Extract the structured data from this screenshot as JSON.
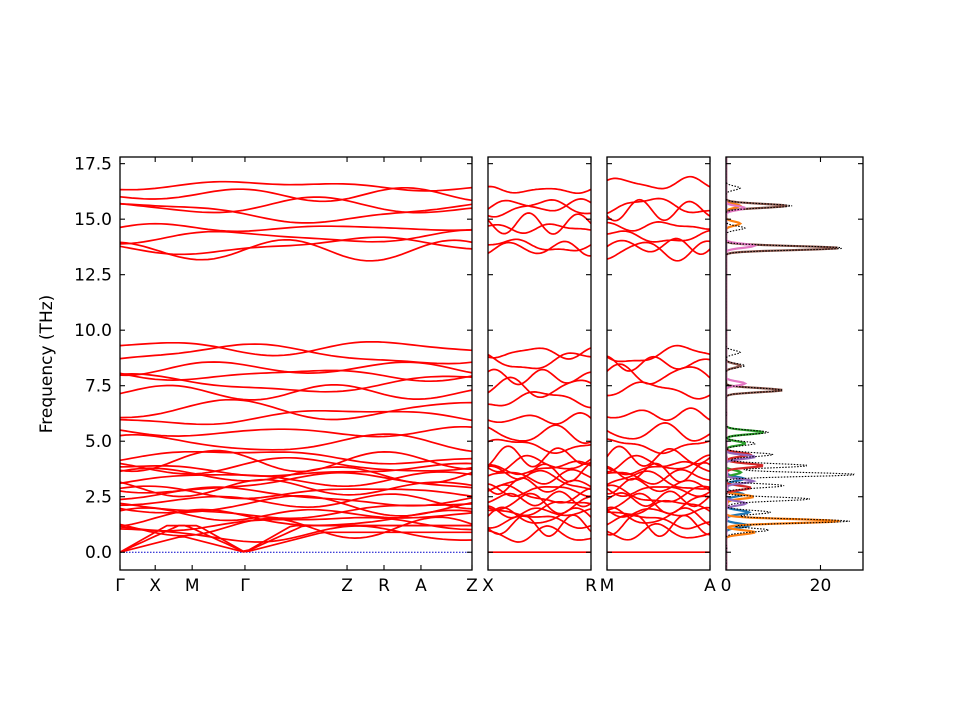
{
  "chart_data": [
    {
      "type": "line",
      "panel": "band-structure",
      "ylabel": "Frequency (THz)",
      "ylim": [
        -0.8,
        17.8
      ],
      "y_ticks": [
        "0.0",
        "2.5",
        "5.0",
        "7.5",
        "10.0",
        "12.5",
        "15.0",
        "17.5"
      ],
      "y_tick_values": [
        0,
        2.5,
        5,
        7.5,
        10,
        12.5,
        15,
        17.5
      ],
      "segments": [
        {
          "labels": [
            "Γ",
            "X",
            "M",
            "Γ",
            "Z",
            "R",
            "A",
            "Z"
          ],
          "rel": [
            0,
            0.1,
            0.205,
            0.355,
            0.645,
            0.75,
            0.855,
            1
          ]
        },
        {
          "labels": [
            "X",
            "R"
          ],
          "rel": [
            0,
            1
          ]
        },
        {
          "labels": [
            "M",
            "A"
          ],
          "rel": [
            0,
            1
          ]
        }
      ],
      "band_color": "#ff0000",
      "zero_line_color": "#0000cc",
      "band_levels_seg1": [
        0.0,
        0.8,
        1.1,
        1.3,
        1.5,
        1.7,
        1.9,
        2.1,
        2.3,
        2.5,
        2.7,
        2.9,
        3.1,
        3.3,
        3.5,
        3.7,
        3.9,
        4.1,
        4.3,
        4.9,
        5.4,
        6.1,
        6.4,
        7.2,
        7.6,
        8.0,
        8.3,
        8.9,
        9.2,
        13.6,
        13.8,
        14.2,
        14.6,
        15.3,
        15.6,
        16.1,
        16.5
      ],
      "band_levels_seg2": [
        0.0,
        0.8,
        1.2,
        1.4,
        1.6,
        1.8,
        2.0,
        2.2,
        2.4,
        2.6,
        2.8,
        3.0,
        3.2,
        3.4,
        3.6,
        3.8,
        4.0,
        4.3,
        4.8,
        5.3,
        6.0,
        6.9,
        7.4,
        7.9,
        8.6,
        9.0,
        13.7,
        13.8,
        14.6,
        14.8,
        15.5,
        15.6,
        16.3
      ],
      "band_levels_seg3": [
        0.0,
        0.9,
        1.2,
        1.4,
        1.6,
        1.8,
        2.0,
        2.2,
        2.4,
        2.6,
        2.8,
        3.0,
        3.2,
        3.4,
        3.6,
        3.8,
        4.0,
        4.3,
        4.8,
        5.4,
        6.2,
        7.3,
        8.0,
        8.5,
        8.9,
        13.6,
        13.8,
        14.2,
        14.7,
        15.4,
        15.6,
        16.6
      ]
    },
    {
      "type": "line",
      "panel": "dos",
      "xlim": [
        0,
        29
      ],
      "x_ticks": [
        "0",
        "20"
      ],
      "x_tick_values": [
        0,
        20
      ],
      "ylim": [
        -0.8,
        17.8
      ],
      "total_color": "#000000",
      "series": [
        {
          "color": "#1f77b4",
          "peaks": [
            [
              1.2,
              5
            ],
            [
              1.8,
              5
            ],
            [
              2.6,
              4
            ],
            [
              3.3,
              4
            ]
          ]
        },
        {
          "color": "#ff7f0e",
          "peaks": [
            [
              1.4,
              24
            ],
            [
              0.9,
              6
            ],
            [
              2.5,
              6
            ],
            [
              14.8,
              3
            ],
            [
              15.6,
              3
            ]
          ]
        },
        {
          "color": "#2ca02c",
          "peaks": [
            [
              5.4,
              8
            ],
            [
              4.9,
              4
            ],
            [
              3.6,
              3
            ]
          ]
        },
        {
          "color": "#d62728",
          "peaks": [
            [
              3.9,
              8
            ],
            [
              4.4,
              5
            ],
            [
              2.9,
              5
            ]
          ]
        },
        {
          "color": "#9467bd",
          "peaks": [
            [
              4.3,
              6
            ],
            [
              3.2,
              6
            ],
            [
              2.2,
              4
            ]
          ]
        },
        {
          "color": "#8c564b",
          "peaks": [
            [
              13.7,
              24
            ],
            [
              15.6,
              13
            ],
            [
              7.3,
              12
            ],
            [
              8.4,
              3
            ]
          ]
        },
        {
          "color": "#e377c2",
          "peaks": [
            [
              13.8,
              6
            ],
            [
              15.5,
              4
            ],
            [
              7.6,
              4
            ]
          ]
        }
      ],
      "total_peaks": [
        [
          1.4,
          26
        ],
        [
          1.0,
          9
        ],
        [
          1.8,
          10
        ],
        [
          2.4,
          18
        ],
        [
          3.0,
          12
        ],
        [
          3.5,
          27
        ],
        [
          3.9,
          18
        ],
        [
          4.4,
          10
        ],
        [
          4.9,
          6
        ],
        [
          5.4,
          9
        ],
        [
          7.3,
          12
        ],
        [
          8.4,
          4
        ],
        [
          9.0,
          3
        ],
        [
          13.7,
          25
        ],
        [
          14.6,
          4
        ],
        [
          15.6,
          14
        ],
        [
          16.4,
          3
        ]
      ]
    }
  ]
}
